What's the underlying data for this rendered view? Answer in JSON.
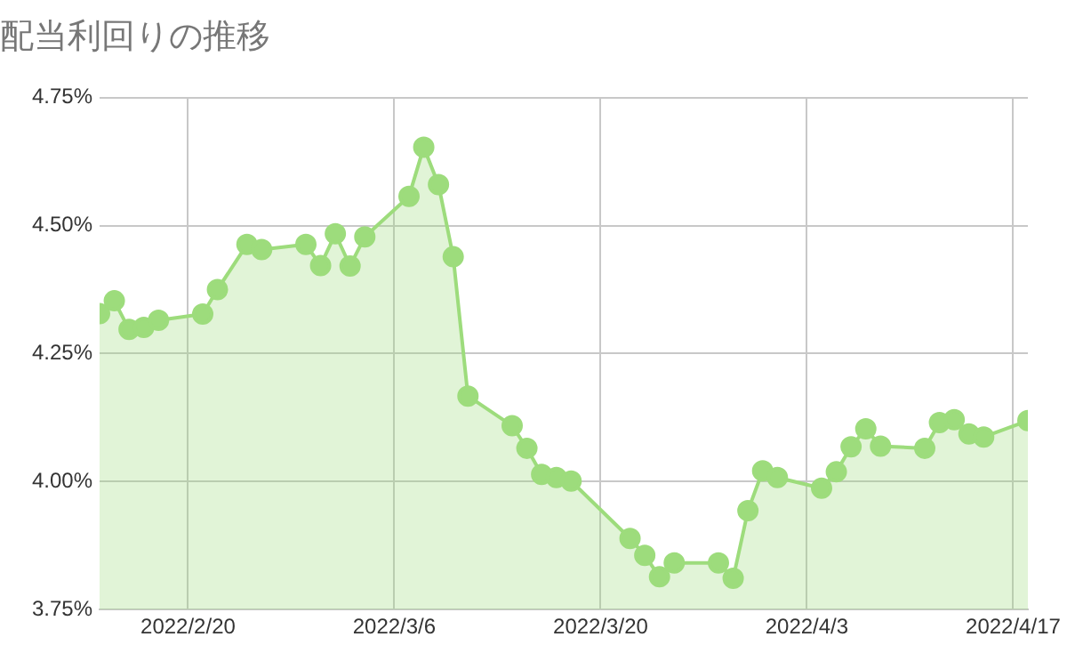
{
  "chart_data": {
    "type": "area",
    "title": "配当利回りの推移",
    "x": [
      "2022-02-14",
      "2022-02-15",
      "2022-02-16",
      "2022-02-17",
      "2022-02-18",
      "2022-02-21",
      "2022-02-22",
      "2022-02-24",
      "2022-02-25",
      "2022-02-28",
      "2022-03-01",
      "2022-03-02",
      "2022-03-03",
      "2022-03-04",
      "2022-03-07",
      "2022-03-08",
      "2022-03-09",
      "2022-03-10",
      "2022-03-11",
      "2022-03-14",
      "2022-03-15",
      "2022-03-16",
      "2022-03-17",
      "2022-03-18",
      "2022-03-22",
      "2022-03-23",
      "2022-03-24",
      "2022-03-25",
      "2022-03-28",
      "2022-03-29",
      "2022-03-30",
      "2022-03-31",
      "2022-04-01",
      "2022-04-04",
      "2022-04-05",
      "2022-04-06",
      "2022-04-07",
      "2022-04-08",
      "2022-04-11",
      "2022-04-12",
      "2022-04-13",
      "2022-04-14",
      "2022-04-15",
      "2022-04-18"
    ],
    "series": [
      {
        "color": "#9ddc7c",
        "values": [
          4.328,
          4.353,
          4.297,
          4.301,
          4.315,
          4.327,
          4.375,
          4.463,
          4.453,
          4.463,
          4.422,
          4.484,
          4.421,
          4.478,
          4.557,
          4.653,
          4.58,
          4.439,
          4.167,
          4.109,
          4.065,
          4.014,
          4.008,
          4.001,
          3.889,
          3.856,
          3.814,
          3.841,
          3.841,
          3.811,
          3.943,
          4.021,
          4.008,
          3.987,
          4.019,
          4.068,
          4.103,
          4.069,
          4.065,
          4.115,
          4.121,
          4.093,
          4.087,
          4.119
        ]
      }
    ],
    "xlim": [
      "2022-02-14",
      "2022-04-18"
    ],
    "xticks": [
      {
        "value": "2022-02-20",
        "label": "2022/2/20"
      },
      {
        "value": "2022-03-06",
        "label": "2022/3/6"
      },
      {
        "value": "2022-03-20",
        "label": "2022/3/20"
      },
      {
        "value": "2022-04-03",
        "label": "2022/4/3"
      },
      {
        "value": "2022-04-17",
        "label": "2022/4/17"
      }
    ],
    "ylim": [
      3.75,
      4.75
    ],
    "yticks": [
      {
        "value": 3.75,
        "label": "3.75%"
      },
      {
        "value": 4,
        "label": "4.00%"
      },
      {
        "value": 4.25,
        "label": "4.25%"
      },
      {
        "value": 4.5,
        "label": "4.50%"
      },
      {
        "value": 4.75,
        "label": "4.75%"
      }
    ],
    "grid": true,
    "legend": false,
    "marker": "circle",
    "line_style": "solid"
  }
}
